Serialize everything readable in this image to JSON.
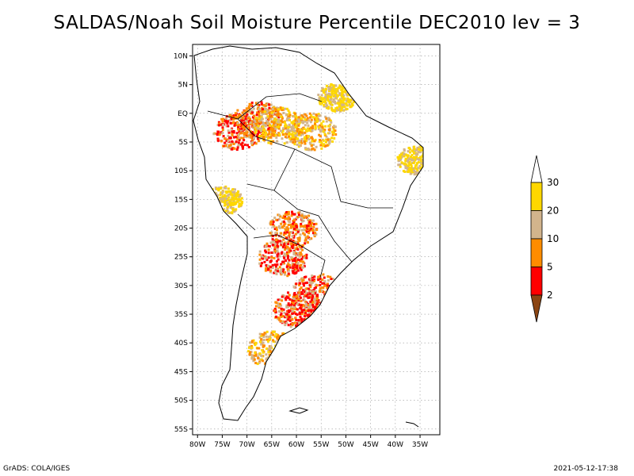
{
  "title": "SALDAS/Noah Soil Moisture Percentile DEC2010 lev = 3",
  "footer": {
    "left": "GrADS: COLA/IGES",
    "right": "2021-05-12-17:38"
  },
  "map": {
    "lon_range": [
      -81,
      -31
    ],
    "lat_range": [
      -56,
      12
    ],
    "lon_ticks": [
      {
        "value": -80,
        "label": "80W"
      },
      {
        "value": -75,
        "label": "75W"
      },
      {
        "value": -70,
        "label": "70W"
      },
      {
        "value": -65,
        "label": "65W"
      },
      {
        "value": -60,
        "label": "60W"
      },
      {
        "value": -55,
        "label": "55W"
      },
      {
        "value": -50,
        "label": "50W"
      },
      {
        "value": -45,
        "label": "45W"
      },
      {
        "value": -40,
        "label": "40W"
      },
      {
        "value": -35,
        "label": "35W"
      }
    ],
    "lat_ticks": [
      {
        "value": 10,
        "label": "10N"
      },
      {
        "value": 5,
        "label": "5N"
      },
      {
        "value": 0,
        "label": "EQ"
      },
      {
        "value": -5,
        "label": "5S"
      },
      {
        "value": -10,
        "label": "10S"
      },
      {
        "value": -15,
        "label": "15S"
      },
      {
        "value": -20,
        "label": "20S"
      },
      {
        "value": -25,
        "label": "25S"
      },
      {
        "value": -30,
        "label": "30S"
      },
      {
        "value": -35,
        "label": "35S"
      },
      {
        "value": -40,
        "label": "40S"
      },
      {
        "value": -45,
        "label": "45S"
      },
      {
        "value": -50,
        "label": "50S"
      },
      {
        "value": -55,
        "label": "55S"
      }
    ],
    "grid": true
  },
  "colorbar": {
    "labels": [
      "30",
      "20",
      "10",
      "5",
      "2"
    ],
    "bins": [
      {
        "range": "> 30",
        "color": "#ffffff"
      },
      {
        "range": "20-30",
        "color": "#fed700"
      },
      {
        "range": "10-20",
        "color": "#d2b48c"
      },
      {
        "range": "5-10",
        "color": "#ff8c00"
      },
      {
        "range": "2-5",
        "color": "#ff0000"
      },
      {
        "range": "< 2",
        "color": "#8b4513"
      }
    ]
  },
  "chart_data": {
    "type": "heatmap",
    "title": "SALDAS/Noah Soil Moisture Percentile DEC2010 lev = 3",
    "variable": "Soil Moisture Percentile",
    "month": "DEC2010",
    "level": "lev = 3",
    "xlabel": "",
    "ylabel": "",
    "xlim": [
      -81,
      -31
    ],
    "ylim": [
      -56,
      12
    ],
    "grid": true,
    "legend_position": "right",
    "regions": [
      {
        "lon": -72,
        "lat": -3,
        "category": "2-5"
      },
      {
        "lon": -68,
        "lat": -1,
        "category": "5-10"
      },
      {
        "lon": -64,
        "lat": -2,
        "category": "10-20"
      },
      {
        "lon": -57,
        "lat": -3,
        "category": "10-20"
      },
      {
        "lon": -52,
        "lat": 3,
        "category": "20-30"
      },
      {
        "lon": -61,
        "lat": -20,
        "category": "5-10"
      },
      {
        "lon": -63,
        "lat": -25,
        "category": "2-5"
      },
      {
        "lon": -56,
        "lat": -31,
        "category": "2-5"
      },
      {
        "lon": -60,
        "lat": -34,
        "category": "2-5"
      },
      {
        "lon": -65,
        "lat": -41,
        "category": "10-20"
      },
      {
        "lon": -75,
        "lat": -15,
        "category": "20-30"
      },
      {
        "lon": -36,
        "lat": -8,
        "category": "20-30"
      }
    ]
  }
}
